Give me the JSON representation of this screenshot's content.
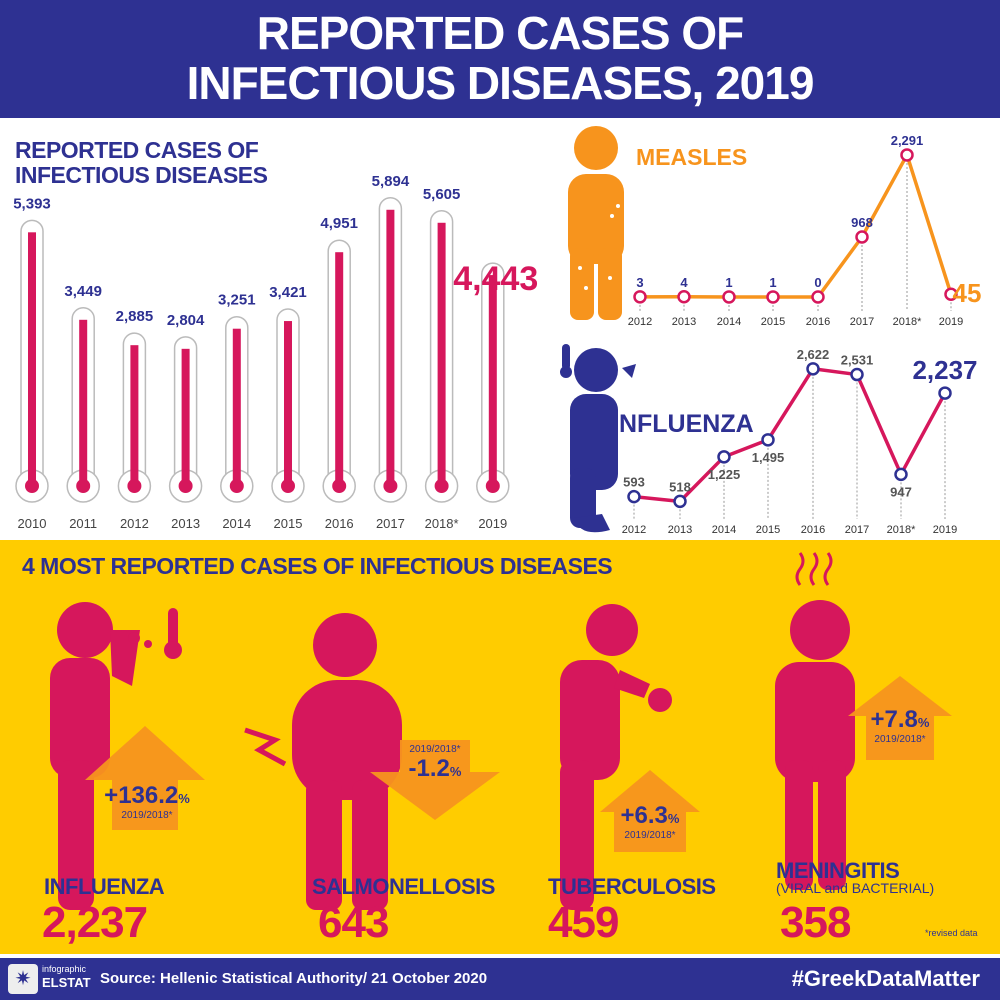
{
  "header": {
    "title_line1": "REPORTED CASES OF",
    "title_line2": "INFECTIOUS DISEASES, 2019"
  },
  "colors": {
    "navy": "#2e3192",
    "crimson": "#d6175c",
    "orange": "#f7941d",
    "yellow": "#ffcc00"
  },
  "chart_data": [
    {
      "type": "bar",
      "title": "REPORTED CASES OF INFECTIOUS DISEASES",
      "style": "thermometer",
      "categories": [
        "2010",
        "2011",
        "2012",
        "2013",
        "2014",
        "2015",
        "2016",
        "2017",
        "2018*",
        "2019"
      ],
      "values": [
        5393,
        3449,
        2885,
        2804,
        3251,
        3421,
        4951,
        5894,
        5605,
        4443
      ],
      "labels": [
        "5,393",
        "3,449",
        "2,885",
        "2,804",
        "3,251",
        "3,421",
        "4,951",
        "5,894",
        "5,605",
        "4,443"
      ]
    },
    {
      "type": "line",
      "title": "MEASLES",
      "categories": [
        "2012",
        "2013",
        "2014",
        "2015",
        "2016",
        "2017",
        "2018*",
        "2019"
      ],
      "values": [
        3,
        4,
        1,
        1,
        0,
        968,
        2291,
        45
      ],
      "labels": [
        "3",
        "4",
        "1",
        "1",
        "0",
        "968",
        "2,291",
        "45"
      ]
    },
    {
      "type": "line",
      "title": "INFLUENZA",
      "categories": [
        "2012",
        "2013",
        "2014",
        "2015",
        "2016",
        "2017",
        "2018*",
        "2019"
      ],
      "values": [
        593,
        518,
        1225,
        1495,
        2622,
        2531,
        947,
        2237
      ],
      "labels": [
        "593",
        "518",
        "1,225",
        "1,495",
        "2,622",
        "2,531",
        "947",
        "2,237"
      ]
    }
  ],
  "bottom": {
    "title": "4 MOST REPORTED CASES OF INFECTIOUS DISEASES",
    "diseases": [
      {
        "name": "INFLUENZA",
        "value": "2,237",
        "change": "+136.2",
        "unit": "%",
        "compare": "2019/2018*",
        "direction": "up"
      },
      {
        "name": "SALMONELLOSIS",
        "value": "643",
        "change": "-1.2",
        "unit": "%",
        "compare": "2019/2018*",
        "direction": "down"
      },
      {
        "name": "TUBERCULOSIS",
        "value": "459",
        "change": "+6.3",
        "unit": "%",
        "compare": "2019/2018*",
        "direction": "up"
      },
      {
        "name": "MENINGITIS",
        "sub": "(VIRAL and BACTERIAL)",
        "value": "358",
        "change": "+7.8",
        "unit": "%",
        "compare": "2019/2018*",
        "direction": "up"
      }
    ],
    "note": "*revised data"
  },
  "footer": {
    "logo_top": "infographic",
    "logo_bottom": "ELSTAT",
    "source": "Source: Hellenic Statistical Authority/ 21 October 2020",
    "hashtag": "#GreekDataMatter"
  }
}
